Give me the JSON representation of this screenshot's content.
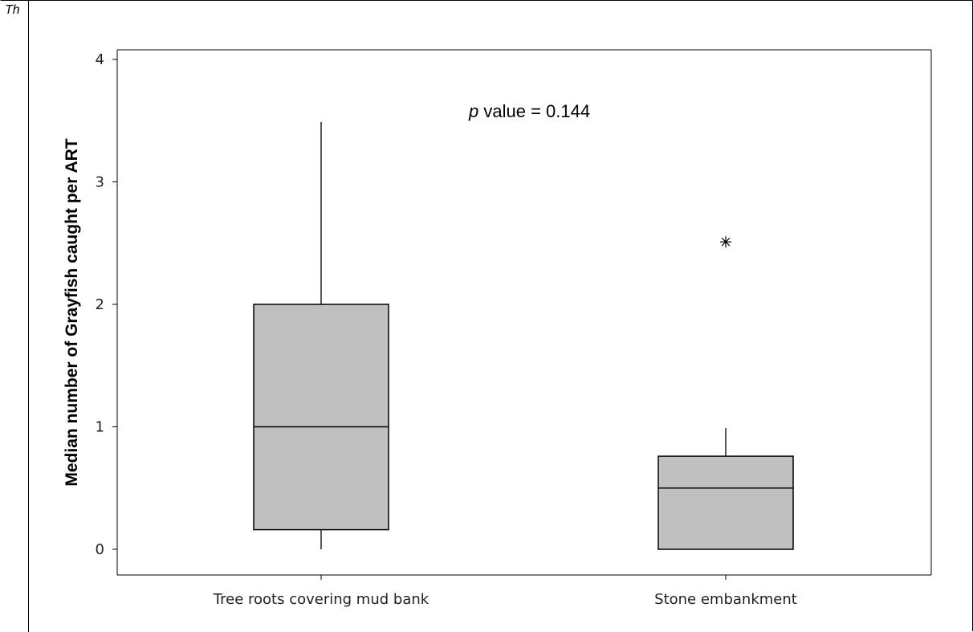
{
  "header": {
    "cut_text": "Th"
  },
  "chart_data": {
    "type": "box",
    "title": "",
    "xlabel": "",
    "ylabel": "Median number of Grayfish caught per ART",
    "ylim": [
      0,
      4
    ],
    "yticks": [
      0,
      1,
      2,
      3,
      4
    ],
    "grid": false,
    "annotation": {
      "prefix": "p",
      "text": " value = 0.144"
    },
    "categories": [
      "Tree roots covering mud bank",
      "Stone embankment"
    ],
    "boxes": [
      {
        "category": "Tree roots covering mud bank",
        "whisker_low": 0,
        "q1": 0.16,
        "median": 1.0,
        "q3": 2.0,
        "whisker_high": 3.49,
        "outliers": []
      },
      {
        "category": "Stone embankment",
        "whisker_low": 0,
        "q1": 0,
        "median": 0.5,
        "q3": 0.76,
        "whisker_high": 0.99,
        "outliers": [
          2.51
        ]
      }
    ],
    "colors": {
      "box_fill": "#c0c0c0",
      "stroke": "#000000"
    }
  }
}
